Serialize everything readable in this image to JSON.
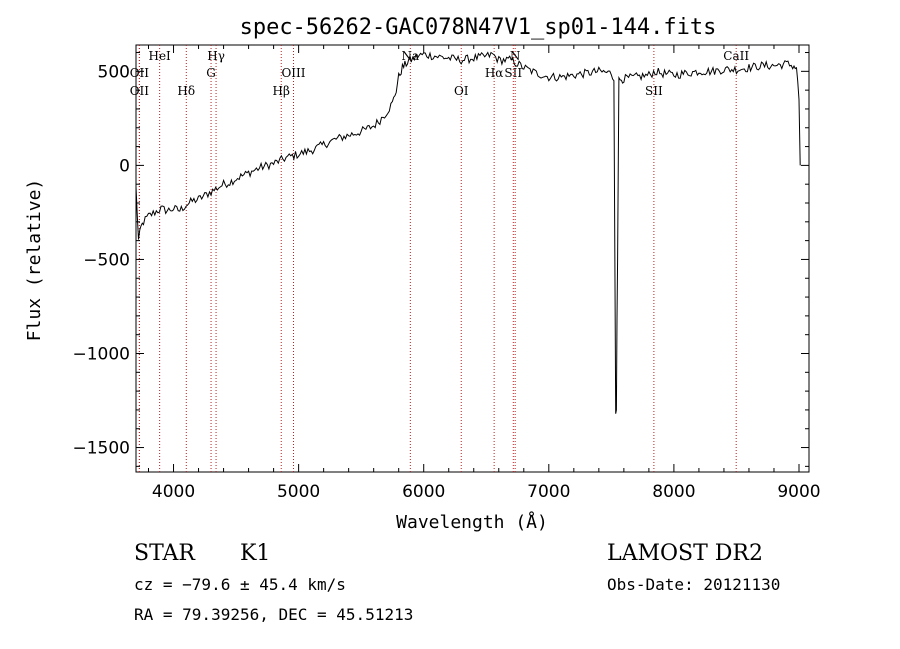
{
  "chart_data": {
    "type": "line",
    "title": "spec-56262-GAC078N47V1_sp01-144.fits",
    "xlabel": "Wavelength (Å)",
    "ylabel": "Flux (relative)",
    "xlim": [
      3700,
      9080
    ],
    "ylim": [
      -1630,
      640
    ],
    "xticks": [
      4000,
      5000,
      6000,
      7000,
      8000,
      9000
    ],
    "xtick_labels": [
      "4000",
      "5000",
      "6000",
      "7000",
      "8000",
      "9000"
    ],
    "yticks": [
      500,
      0,
      -500,
      -1000,
      -1500
    ],
    "ytick_labels": [
      "500",
      "0",
      "−500",
      "−1000",
      "−1500"
    ],
    "grid": false,
    "series": [
      {
        "x": [
          3700,
          3720,
          3740,
          3760,
          3800,
          3850,
          3900,
          3950,
          4000,
          4050,
          4100,
          4150,
          4200,
          4250,
          4300,
          4350,
          4400,
          4450,
          4500,
          4600,
          4700,
          4800,
          4900,
          5000,
          5100,
          5200,
          5300,
          5400,
          5500,
          5600,
          5650,
          5700,
          5750,
          5780,
          5800,
          5830,
          5860,
          5880,
          5900,
          5950,
          6000,
          6100,
          6200,
          6300,
          6400,
          6500,
          6550,
          6600,
          6650,
          6700,
          6750,
          6800,
          6900,
          7000,
          7100,
          7200,
          7300,
          7400,
          7500,
          7520,
          7535,
          7540,
          7545,
          7550,
          7560,
          7580,
          7600,
          7700,
          7800,
          7850,
          7900,
          8000,
          8100,
          8200,
          8300,
          8400,
          8500,
          8600,
          8700,
          8800,
          8900,
          8950,
          8980,
          9000,
          9010
        ],
        "y": [
          -120,
          -400,
          -330,
          -300,
          -270,
          -250,
          -230,
          -240,
          -230,
          -240,
          -210,
          -190,
          -180,
          -160,
          -140,
          -120,
          -100,
          -90,
          -70,
          -40,
          -10,
          10,
          40,
          60,
          80,
          110,
          140,
          160,
          180,
          210,
          240,
          280,
          330,
          400,
          470,
          520,
          540,
          560,
          560,
          580,
          590,
          580,
          570,
          560,
          570,
          580,
          590,
          560,
          560,
          560,
          540,
          520,
          490,
          470,
          470,
          480,
          490,
          500,
          490,
          450,
          -1300,
          -1300,
          -800,
          -500,
          450,
          460,
          460,
          470,
          480,
          500,
          490,
          480,
          490,
          500,
          500,
          510,
          510,
          520,
          530,
          530,
          540,
          530,
          520,
          350,
          0
        ]
      }
    ],
    "lines": [
      {
        "wl": 3889,
        "label": "HeI",
        "row": 0
      },
      {
        "wl": 3727,
        "label": "OII",
        "row": 1
      },
      {
        "wl": 3727,
        "label": "OII",
        "row": 2
      },
      {
        "wl": 4102,
        "label": "Hδ",
        "row": 2
      },
      {
        "wl": 4300,
        "label": "G",
        "row": 1
      },
      {
        "wl": 4340,
        "label": "Hγ",
        "row": 0
      },
      {
        "wl": 4861,
        "label": "Hβ",
        "row": 2
      },
      {
        "wl": 4959,
        "label": "OIII",
        "row": 1
      },
      {
        "wl": 5893,
        "label": "Na",
        "row": 0
      },
      {
        "wl": 6300,
        "label": "OI",
        "row": 2
      },
      {
        "wl": 6563,
        "label": "Hα",
        "row": 1
      },
      {
        "wl": 6716,
        "label": "SII",
        "row": 1
      },
      {
        "wl": 6731,
        "label": "N",
        "row": 0
      },
      {
        "wl": 7840,
        "label": "SII",
        "row": 2
      },
      {
        "wl": 8498,
        "label": "CaII",
        "row": 0
      }
    ]
  },
  "info": {
    "class_label": "STAR",
    "subclass_label": "K1",
    "survey_label": "LAMOST DR2",
    "cz_text": "cz = −79.6 ± 45.4 km/s",
    "obs_date_text": "Obs-Date: 20121130",
    "radec_text": "RA =  79.39256, DEC =  45.51213"
  },
  "colors": {
    "axis": "#000000",
    "spectrum": "#000000",
    "line_marker": "#b22222"
  }
}
